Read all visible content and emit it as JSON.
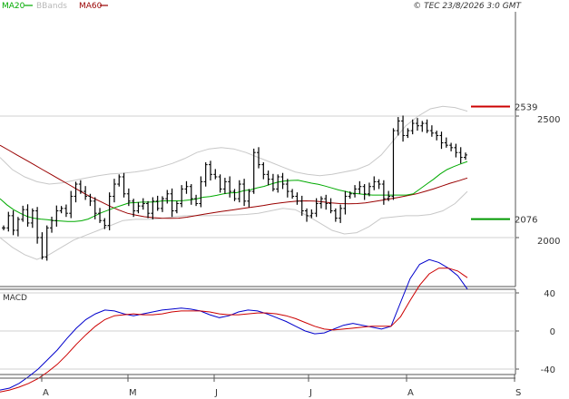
{
  "header": {
    "legend": [
      {
        "label": "MA20",
        "color": "#00aa00"
      },
      {
        "label": "BBands",
        "color": "#c8c8c8"
      },
      {
        "label": "MA60",
        "color": "#990000"
      }
    ],
    "copyright": "© TEC 23/8/2026 3:0 GMT"
  },
  "chart_data": [
    {
      "type": "candlestick",
      "title": "",
      "ylim": [
        1780,
        2750
      ],
      "y_ticks": [
        "2000",
        "2500"
      ],
      "grid": true,
      "x_ticks": [
        "A",
        "M",
        "J",
        "J",
        "A",
        "S"
      ],
      "levels": [
        {
          "label": "2539",
          "value": 2539,
          "color": "#cc0000"
        },
        {
          "label": "2076",
          "value": 2076,
          "color": "#009900"
        }
      ],
      "close": [
        2040,
        2090,
        2030,
        2075,
        2115,
        2060,
        2110,
        2000,
        1920,
        2040,
        2070,
        2110,
        2120,
        2100,
        2170,
        2220,
        2190,
        2170,
        2150,
        2100,
        2070,
        2050,
        2170,
        2220,
        2250,
        2180,
        2150,
        2110,
        2130,
        2140,
        2100,
        2150,
        2120,
        2160,
        2180,
        2110,
        2140,
        2200,
        2210,
        2160,
        2140,
        2230,
        2300,
        2260,
        2250,
        2200,
        2230,
        2190,
        2160,
        2220,
        2150,
        2190,
        2350,
        2300,
        2260,
        2240,
        2200,
        2250,
        2220,
        2190,
        2170,
        2150,
        2110,
        2090,
        2100,
        2140,
        2160,
        2140,
        2110,
        2080,
        2120,
        2170,
        2180,
        2200,
        2210,
        2180,
        2210,
        2230,
        2220,
        2160,
        2170,
        2440,
        2480,
        2420,
        2440,
        2470,
        2460,
        2470,
        2440,
        2430,
        2420,
        2390,
        2380,
        2370,
        2350,
        2330,
        2340
      ],
      "ma20": [
        2160,
        2135,
        2115,
        2100,
        2087,
        2080,
        2076,
        2074,
        2070,
        2068,
        2066,
        2066,
        2069,
        2076,
        2089,
        2103,
        2113,
        2124,
        2133,
        2142,
        2144,
        2146,
        2146,
        2147,
        2151,
        2151,
        2151,
        2152,
        2155,
        2159,
        2166,
        2169,
        2174,
        2180,
        2184,
        2185,
        2193,
        2197,
        2205,
        2211,
        2220,
        2228,
        2233,
        2235,
        2236,
        2230,
        2224,
        2219,
        2212,
        2204,
        2196,
        2190,
        2183,
        2180,
        2177,
        2175,
        2175,
        2175,
        2175,
        2175,
        2175,
        2180,
        2200,
        2220,
        2240,
        2262,
        2280,
        2292,
        2303,
        2313
      ],
      "ma60": [
        2380,
        2360,
        2340,
        2320,
        2300,
        2280,
        2260,
        2240,
        2220,
        2200,
        2180,
        2162,
        2145,
        2128,
        2113,
        2100,
        2092,
        2086,
        2082,
        2080,
        2079,
        2080,
        2084,
        2090,
        2096,
        2102,
        2107,
        2112,
        2117,
        2122,
        2127,
        2132,
        2138,
        2143,
        2147,
        2150,
        2151,
        2150,
        2147,
        2143,
        2140,
        2139,
        2140,
        2143,
        2148,
        2154,
        2160,
        2166,
        2173,
        2180,
        2190,
        2200,
        2212,
        2224,
        2234,
        2245
      ],
      "bb_upper": [
        2330,
        2280,
        2250,
        2230,
        2220,
        2225,
        2235,
        2245,
        2255,
        2262,
        2265,
        2270,
        2278,
        2290,
        2305,
        2325,
        2350,
        2365,
        2370,
        2365,
        2350,
        2330,
        2310,
        2290,
        2270,
        2260,
        2255,
        2260,
        2270,
        2280,
        2300,
        2340,
        2400,
        2460,
        2500,
        2530,
        2540,
        2535,
        2520
      ],
      "bb_lower": [
        2000,
        1960,
        1930,
        1910,
        1930,
        1960,
        1990,
        2010,
        2030,
        2050,
        2070,
        2075,
        2075,
        2078,
        2085,
        2090,
        2090,
        2090,
        2092,
        2093,
        2095,
        2100,
        2110,
        2120,
        2115,
        2090,
        2060,
        2030,
        2015,
        2020,
        2045,
        2080,
        2085,
        2090,
        2090,
        2095,
        2110,
        2140,
        2190
      ]
    },
    {
      "type": "line",
      "title": "MACD",
      "ylim": [
        -60,
        60
      ],
      "y_ticks": [
        "40",
        "0",
        "-40"
      ],
      "grid": true,
      "series": [
        {
          "values": [
            -62,
            -60,
            -55,
            -48,
            -40,
            -30,
            -20,
            -8,
            3,
            12,
            18,
            22,
            21,
            18,
            16,
            18,
            20,
            22,
            23,
            24,
            23,
            21,
            17,
            14,
            16,
            20,
            22,
            21,
            18,
            14,
            10,
            5,
            0,
            -3,
            -2,
            2,
            6,
            8,
            6,
            4,
            2,
            5,
            30,
            55,
            70,
            75,
            72,
            66,
            58,
            44
          ]
        },
        {
          "values": [
            -64,
            -62,
            -59,
            -55,
            -50,
            -43,
            -35,
            -25,
            -14,
            -4,
            5,
            12,
            16,
            17,
            18,
            17,
            17,
            18,
            20,
            21,
            21,
            21,
            20,
            18,
            17,
            17,
            18,
            19,
            19,
            18,
            16,
            13,
            9,
            5,
            2,
            1,
            2,
            3,
            4,
            5,
            5,
            5,
            15,
            32,
            48,
            60,
            66,
            66,
            63,
            56
          ]
        }
      ]
    }
  ]
}
